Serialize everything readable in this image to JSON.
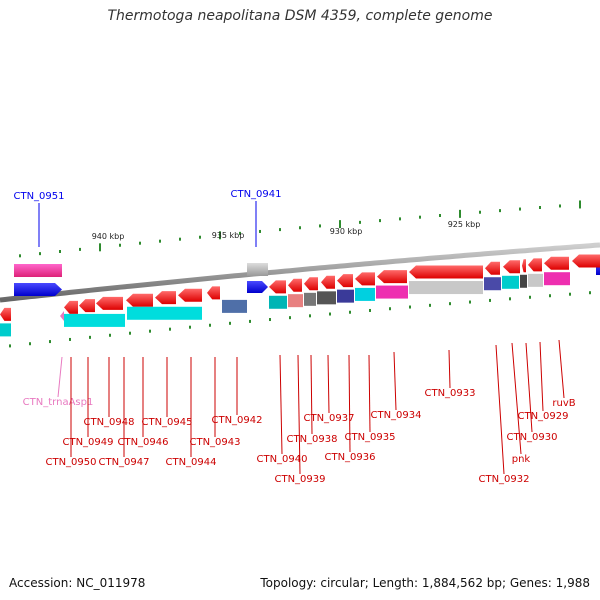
{
  "title": "Thermotoga neapolitana DSM 4359, complete genome",
  "footer": {
    "accession": "Accession: NC_011978",
    "summary": "Topology: circular; Length: 1,884,562 bp; Genes: 1,988"
  },
  "scale_labels": [
    "940 kbp",
    "935 kbp",
    "930 kbp",
    "925 kbp"
  ],
  "colors": {
    "gene": "#ff1a1a",
    "label_red": "#cc0000",
    "label_blue": "#0000aa",
    "label_pink": "#e879c0",
    "backbone": "#777777",
    "tick": "#2e8b2e"
  },
  "genes": [
    {
      "name": "CTN_0951",
      "color": "#0000ee"
    },
    {
      "name": "CTN_0941",
      "color": "#0000ee"
    },
    {
      "name": "CTN_trnaAsp1",
      "color": "#e879c0"
    },
    {
      "name": "CTN_0950",
      "color": "#cc0000"
    },
    {
      "name": "CTN_0949",
      "color": "#cc0000"
    },
    {
      "name": "CTN_0948",
      "color": "#cc0000"
    },
    {
      "name": "CTN_0947",
      "color": "#cc0000"
    },
    {
      "name": "CTN_0946",
      "color": "#cc0000"
    },
    {
      "name": "CTN_0945",
      "color": "#cc0000"
    },
    {
      "name": "CTN_0944",
      "color": "#cc0000"
    },
    {
      "name": "CTN_0943",
      "color": "#cc0000"
    },
    {
      "name": "CTN_0942",
      "color": "#cc0000"
    },
    {
      "name": "CTN_0940",
      "color": "#cc0000"
    },
    {
      "name": "CTN_0939",
      "color": "#cc0000"
    },
    {
      "name": "CTN_0938",
      "color": "#cc0000"
    },
    {
      "name": "CTN_0937",
      "color": "#cc0000"
    },
    {
      "name": "CTN_0936",
      "color": "#cc0000"
    },
    {
      "name": "CTN_0935",
      "color": "#cc0000"
    },
    {
      "name": "CTN_0934",
      "color": "#cc0000"
    },
    {
      "name": "CTN_0933",
      "color": "#cc0000"
    },
    {
      "name": "CTN_0932",
      "color": "#cc0000"
    },
    {
      "name": "pnk",
      "color": "#cc0000"
    },
    {
      "name": "CTN_0930",
      "color": "#cc0000"
    },
    {
      "name": "CTN_0929",
      "color": "#cc0000"
    },
    {
      "name": "ruvB",
      "color": "#cc0000"
    }
  ]
}
